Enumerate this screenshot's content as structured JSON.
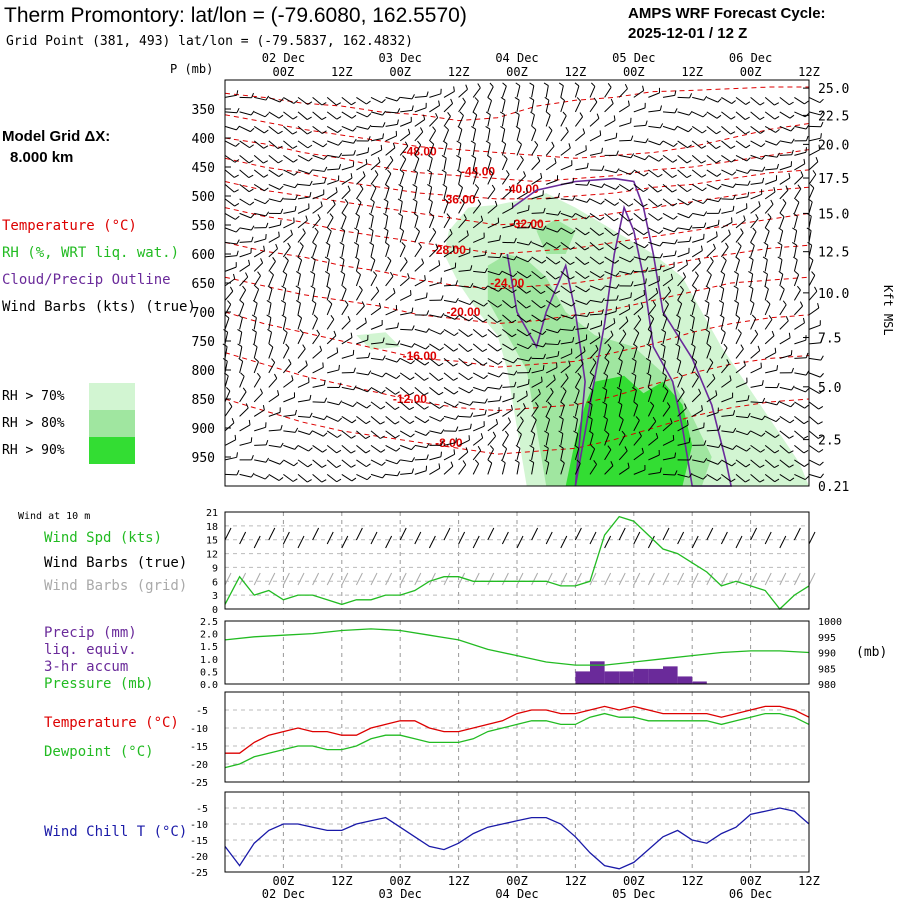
{
  "header": {
    "title": "Therm Promontory:  lat/lon = (-79.6080, 162.5570)",
    "grid_point": "Grid Point (381, 493) lat/lon = (-79.5837, 162.4832)",
    "forecast_label": "AMPS WRF Forecast Cycle:",
    "forecast_cycle": "2025-12-01 / 12  Z",
    "model_grid_label": "Model Grid ΔX:",
    "model_grid_value": "8.000 km"
  },
  "colors": {
    "temperature": "#dd0000",
    "rh": "#22bb22",
    "cloud": "#6a2a9a",
    "wind_chill": "#1a1aa8",
    "rh70": "#d2f5d2",
    "rh80": "#a0e6a0",
    "rh90": "#33dd33",
    "gray": "#aaaaaa"
  },
  "time_axis": {
    "tick_labels": [
      "00Z",
      "12Z",
      "00Z",
      "12Z",
      "00Z",
      "12Z",
      "00Z",
      "12Z",
      "00Z",
      "12Z"
    ],
    "tick_hours": [
      12,
      24,
      36,
      48,
      60,
      72,
      84,
      96,
      108,
      120
    ],
    "days": [
      "02 Dec",
      "03 Dec",
      "04 Dec",
      "05 Dec",
      "06 Dec"
    ],
    "day_hours": [
      12,
      36,
      60,
      84,
      108
    ],
    "range_hours": [
      0,
      120
    ]
  },
  "chart_data": [
    {
      "type": "heatmap",
      "name": "time-height cross section",
      "y_axis_label": "P (mb)",
      "y_ticks": [
        350,
        400,
        450,
        500,
        550,
        600,
        650,
        700,
        750,
        800,
        850,
        900,
        950
      ],
      "ylim": [
        1000,
        300
      ],
      "right_axis_label": "Kft MSL",
      "right_ticks": [
        "25.0",
        "22.5",
        "20.0",
        "17.5",
        "15.0",
        "12.5",
        "10.0",
        "7.5",
        "5.0",
        "2.5",
        "0.21"
      ],
      "right_tick_pressures": [
        314,
        361,
        411,
        469,
        530,
        596,
        667,
        744,
        829,
        920,
        1000
      ],
      "legend": {
        "temperature": "Temperature (°C)",
        "rh": "RH (%, WRT liq. wat.)",
        "cloud": "Cloud/Precip Outline",
        "wind": "Wind Barbs (kts) (true)",
        "rh70": "RH > 70%",
        "rh80": "RH > 80%",
        "rh90": "RH > 90%"
      },
      "isotherm_labels": [
        {
          "text": "-48.00",
          "hour": 40,
          "p": 430
        },
        {
          "text": "-44.00",
          "hour": 52,
          "p": 465
        },
        {
          "text": "-40.00",
          "hour": 61,
          "p": 495
        },
        {
          "text": "-36.00",
          "hour": 48,
          "p": 513
        },
        {
          "text": "-32.00",
          "hour": 62,
          "p": 555
        },
        {
          "text": "-28.00",
          "hour": 46,
          "p": 600
        },
        {
          "text": "-24.00",
          "hour": 58,
          "p": 657
        },
        {
          "text": "-20.00",
          "hour": 49,
          "p": 707
        },
        {
          "text": "-16.00",
          "hour": 40,
          "p": 783
        },
        {
          "text": "-12.00",
          "hour": 38,
          "p": 857
        },
        {
          "text": "-8.00",
          "hour": 46,
          "p": 933
        }
      ],
      "isotherm_levels": [
        [
          323,
          330,
          340,
          345,
          355,
          360,
          370,
          365,
          345,
          335,
          330,
          320,
          318,
          315,
          312,
          312
        ],
        [
          360,
          372,
          385,
          395,
          405,
          415,
          420,
          425,
          430,
          435,
          430,
          425,
          415,
          400,
          385,
          375
        ],
        [
          400,
          410,
          425,
          435,
          450,
          460,
          465,
          470,
          475,
          470,
          465,
          455,
          450,
          440,
          430,
          420
        ],
        [
          435,
          450,
          460,
          475,
          485,
          495,
          500,
          505,
          505,
          500,
          495,
          485,
          480,
          470,
          460,
          455
        ],
        [
          475,
          490,
          500,
          510,
          520,
          530,
          540,
          550,
          545,
          540,
          530,
          520,
          510,
          500,
          490,
          485
        ],
        [
          520,
          535,
          545,
          560,
          570,
          580,
          590,
          600,
          595,
          590,
          580,
          570,
          560,
          550,
          540,
          530
        ],
        [
          580,
          595,
          605,
          620,
          630,
          645,
          655,
          660,
          655,
          650,
          640,
          625,
          610,
          600,
          590,
          585
        ],
        [
          640,
          655,
          670,
          680,
          690,
          705,
          712,
          720,
          715,
          705,
          695,
          680,
          665,
          650,
          645,
          640
        ],
        [
          700,
          720,
          735,
          750,
          765,
          780,
          785,
          795,
          790,
          785,
          770,
          755,
          735,
          720,
          710,
          705
        ],
        [
          770,
          790,
          810,
          825,
          840,
          855,
          865,
          870,
          865,
          860,
          845,
          825,
          805,
          790,
          780,
          775
        ],
        [
          850,
          870,
          890,
          905,
          915,
          925,
          935,
          945,
          940,
          935,
          920,
          900,
          880,
          865,
          855,
          850
        ]
      ]
    },
    {
      "type": "line",
      "name": "10 m wind speed",
      "header": "Wind at 10 m",
      "labels": [
        "Wind Spd (kts)",
        "Wind Barbs (true)",
        "Wind Barbs (grid)"
      ],
      "y_ticks": [
        0,
        3,
        6,
        9,
        12,
        15,
        18,
        21
      ],
      "ylim": [
        0,
        21
      ],
      "series": [
        {
          "name": "Wind Spd (kts)",
          "x": [
            0,
            3,
            6,
            9,
            12,
            15,
            18,
            21,
            24,
            27,
            30,
            33,
            36,
            39,
            42,
            45,
            48,
            51,
            54,
            57,
            60,
            63,
            66,
            69,
            72,
            75,
            78,
            81,
            84,
            87,
            90,
            93,
            96,
            99,
            102,
            105,
            108,
            111,
            114,
            117,
            120
          ],
          "y": [
            1,
            7,
            3,
            4,
            2,
            3,
            3,
            2,
            1,
            2,
            2,
            3,
            3,
            4,
            6,
            7,
            7,
            6,
            6,
            6,
            6,
            6,
            6,
            5,
            5,
            6,
            16,
            20,
            19,
            16,
            13,
            12,
            10,
            8,
            5,
            6,
            5,
            4,
            0,
            3,
            5
          ]
        }
      ]
    },
    {
      "type": "bar",
      "name": "3-hr precip and surface pressure",
      "labels": [
        "Precip (mm)",
        "liq. equiv.",
        "3-hr accum",
        "Pressure (mb)"
      ],
      "y_ticks": [
        "0.0",
        "0.5",
        "1.0",
        "1.5",
        "2.0",
        "2.5"
      ],
      "ylim": [
        0,
        2.5
      ],
      "right_ticks": [
        "980",
        "985",
        "990",
        "995",
        "1000"
      ],
      "right_unit": "(mb)",
      "right_lim": [
        980,
        1000
      ],
      "precip": {
        "x": [
          72,
          75,
          78,
          81,
          84,
          87,
          90,
          93,
          96
        ],
        "values": [
          0.5,
          0.9,
          0.5,
          0.5,
          0.6,
          0.6,
          0.7,
          0.3,
          0.1
        ]
      },
      "pressure": {
        "x": [
          0,
          6,
          12,
          18,
          24,
          30,
          36,
          42,
          48,
          54,
          60,
          66,
          72,
          78,
          84,
          90,
          96,
          102,
          108,
          114,
          120
        ],
        "values": [
          994,
          995,
          995.5,
          996,
          997,
          997.5,
          997,
          995.5,
          994,
          991,
          989,
          987,
          986,
          986,
          987,
          988,
          989,
          990,
          990.5,
          990.5,
          990
        ]
      }
    },
    {
      "type": "line",
      "name": "temperature and dewpoint",
      "y_ticks": [
        -25,
        -20,
        -15,
        -10,
        -5
      ],
      "ylim": [
        -25,
        0
      ],
      "series": [
        {
          "name": "Temperature (°C)",
          "x": [
            0,
            3,
            6,
            9,
            12,
            15,
            18,
            21,
            24,
            27,
            30,
            33,
            36,
            39,
            42,
            45,
            48,
            51,
            54,
            57,
            60,
            63,
            66,
            69,
            72,
            75,
            78,
            81,
            84,
            87,
            90,
            93,
            96,
            99,
            102,
            105,
            108,
            111,
            114,
            117,
            120
          ],
          "y": [
            -17,
            -17,
            -14,
            -12,
            -11,
            -10,
            -11,
            -11,
            -12,
            -12,
            -10,
            -9,
            -8,
            -8,
            -10,
            -11,
            -11,
            -10,
            -9,
            -8,
            -6,
            -5,
            -5,
            -6,
            -6,
            -5,
            -4,
            -5,
            -4,
            -5,
            -6,
            -6,
            -6,
            -6,
            -7,
            -6,
            -5,
            -4,
            -4,
            -5,
            -7
          ]
        },
        {
          "name": "Dewpoint (°C)",
          "x": [
            0,
            3,
            6,
            9,
            12,
            15,
            18,
            21,
            24,
            27,
            30,
            33,
            36,
            39,
            42,
            45,
            48,
            51,
            54,
            57,
            60,
            63,
            66,
            69,
            72,
            75,
            78,
            81,
            84,
            87,
            90,
            93,
            96,
            99,
            102,
            105,
            108,
            111,
            114,
            117,
            120
          ],
          "y": [
            -21,
            -20,
            -18,
            -17,
            -16,
            -15,
            -15,
            -16,
            -16,
            -15,
            -13,
            -12,
            -12,
            -13,
            -14,
            -14,
            -14,
            -13,
            -11,
            -10,
            -9,
            -8,
            -8,
            -9,
            -9,
            -7,
            -6,
            -7,
            -7,
            -8,
            -8,
            -8,
            -8,
            -8,
            -9,
            -8,
            -7,
            -6,
            -6,
            -7,
            -9
          ]
        }
      ]
    },
    {
      "type": "line",
      "name": "wind chill",
      "y_ticks": [
        -25,
        -20,
        -15,
        -10,
        -5
      ],
      "ylim": [
        -25,
        0
      ],
      "series": [
        {
          "name": "Wind Chill T (°C)",
          "x": [
            0,
            3,
            6,
            9,
            12,
            15,
            18,
            21,
            24,
            27,
            30,
            33,
            36,
            39,
            42,
            45,
            48,
            51,
            54,
            57,
            60,
            63,
            66,
            69,
            72,
            75,
            78,
            81,
            84,
            87,
            90,
            93,
            96,
            99,
            102,
            105,
            108,
            111,
            114,
            117,
            120
          ],
          "y": [
            -17,
            -23,
            -16,
            -12,
            -10,
            -10,
            -11,
            -12,
            -12,
            -10,
            -9,
            -8,
            -11,
            -14,
            -17,
            -18,
            -16,
            -13,
            -11,
            -10,
            -9,
            -8,
            -8,
            -10,
            -14,
            -19,
            -23,
            -24,
            -22,
            -18,
            -14,
            -12,
            -15,
            -16,
            -13,
            -11,
            -7,
            -6,
            -5,
            -6,
            -10
          ]
        }
      ]
    }
  ]
}
